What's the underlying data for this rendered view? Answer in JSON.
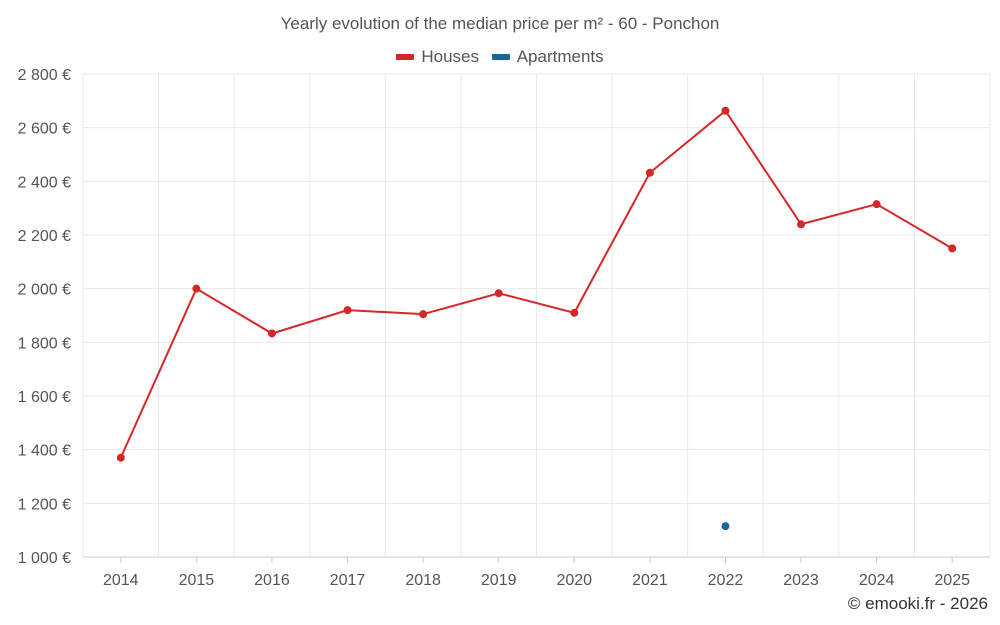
{
  "chart_data": {
    "type": "line",
    "title": "Yearly evolution of the median price per m² - 60 - Ponchon",
    "categories": [
      "2014",
      "2015",
      "2016",
      "2017",
      "2018",
      "2019",
      "2020",
      "2021",
      "2022",
      "2023",
      "2024",
      "2025"
    ],
    "ylim": [
      1000,
      2800
    ],
    "yticks": [
      1000,
      1200,
      1400,
      1600,
      1800,
      2000,
      2200,
      2400,
      2600,
      2800
    ],
    "y_tick_labels": [
      "1 000 €",
      "1 200 €",
      "1 400 €",
      "1 600 €",
      "1 800 €",
      "2 000 €",
      "2 200 €",
      "2 400 €",
      "2 600 €",
      "2 800 €"
    ],
    "series": [
      {
        "name": "Houses",
        "color": "#d62728",
        "values": [
          1370,
          2000,
          1833,
          1920,
          1905,
          1983,
          1910,
          2432,
          2663,
          2240,
          2315,
          2150
        ]
      },
      {
        "name": "Apartments",
        "color": "#1468a0",
        "values": [
          null,
          null,
          null,
          null,
          null,
          null,
          null,
          null,
          1115,
          null,
          null,
          null
        ]
      }
    ],
    "grid": true,
    "legend": "top-center"
  },
  "footer": {
    "copyright": "© emooki.fr - 2026"
  }
}
